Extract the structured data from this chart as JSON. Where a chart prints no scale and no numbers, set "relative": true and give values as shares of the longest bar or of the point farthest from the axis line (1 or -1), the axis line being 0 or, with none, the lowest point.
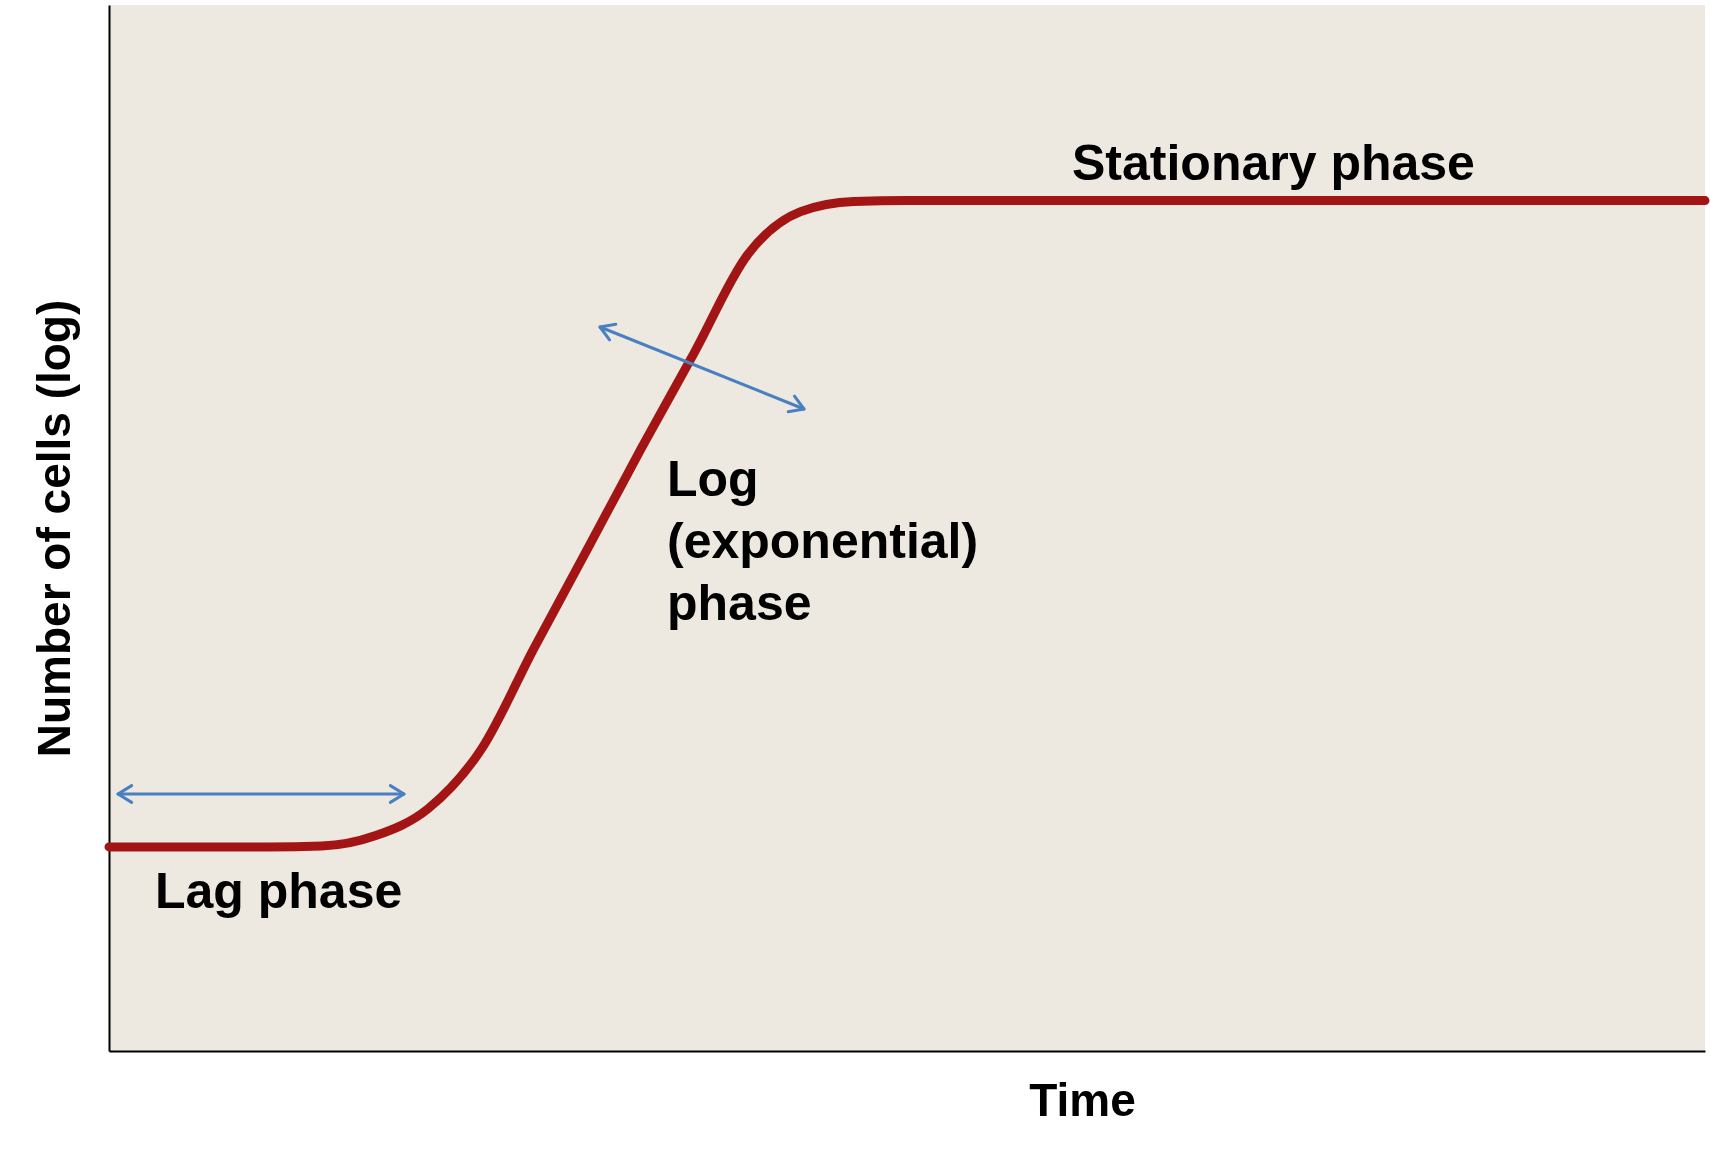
{
  "chart_data": {
    "type": "line",
    "relative": true,
    "xlabel": "Time",
    "ylabel": "Number of cells (log)",
    "categories": [
      null,
      null,
      null,
      null,
      null,
      null,
      null,
      null,
      null,
      null,
      null,
      null,
      null,
      null,
      null,
      null,
      null,
      null,
      null,
      null,
      null,
      null,
      null,
      null,
      null,
      null,
      null,
      null,
      null,
      null,
      null
    ],
    "series": [
      {
        "color": "#a31515",
        "values": [
          0.24,
          0.24,
          0.24,
          0.24,
          0.241,
          0.253,
          0.285,
          0.355,
          0.475,
          0.591,
          0.708,
          0.821,
          0.936,
          0.987,
          0.999,
          1,
          1,
          1,
          1,
          1,
          1,
          1,
          1,
          1,
          1,
          1,
          1,
          1,
          1,
          1,
          1
        ]
      }
    ],
    "annotations": [
      "Stationary phase",
      "Log\n(exponential)\nphase",
      "Lag phase"
    ],
    "grid": false,
    "line_style": "solid"
  }
}
